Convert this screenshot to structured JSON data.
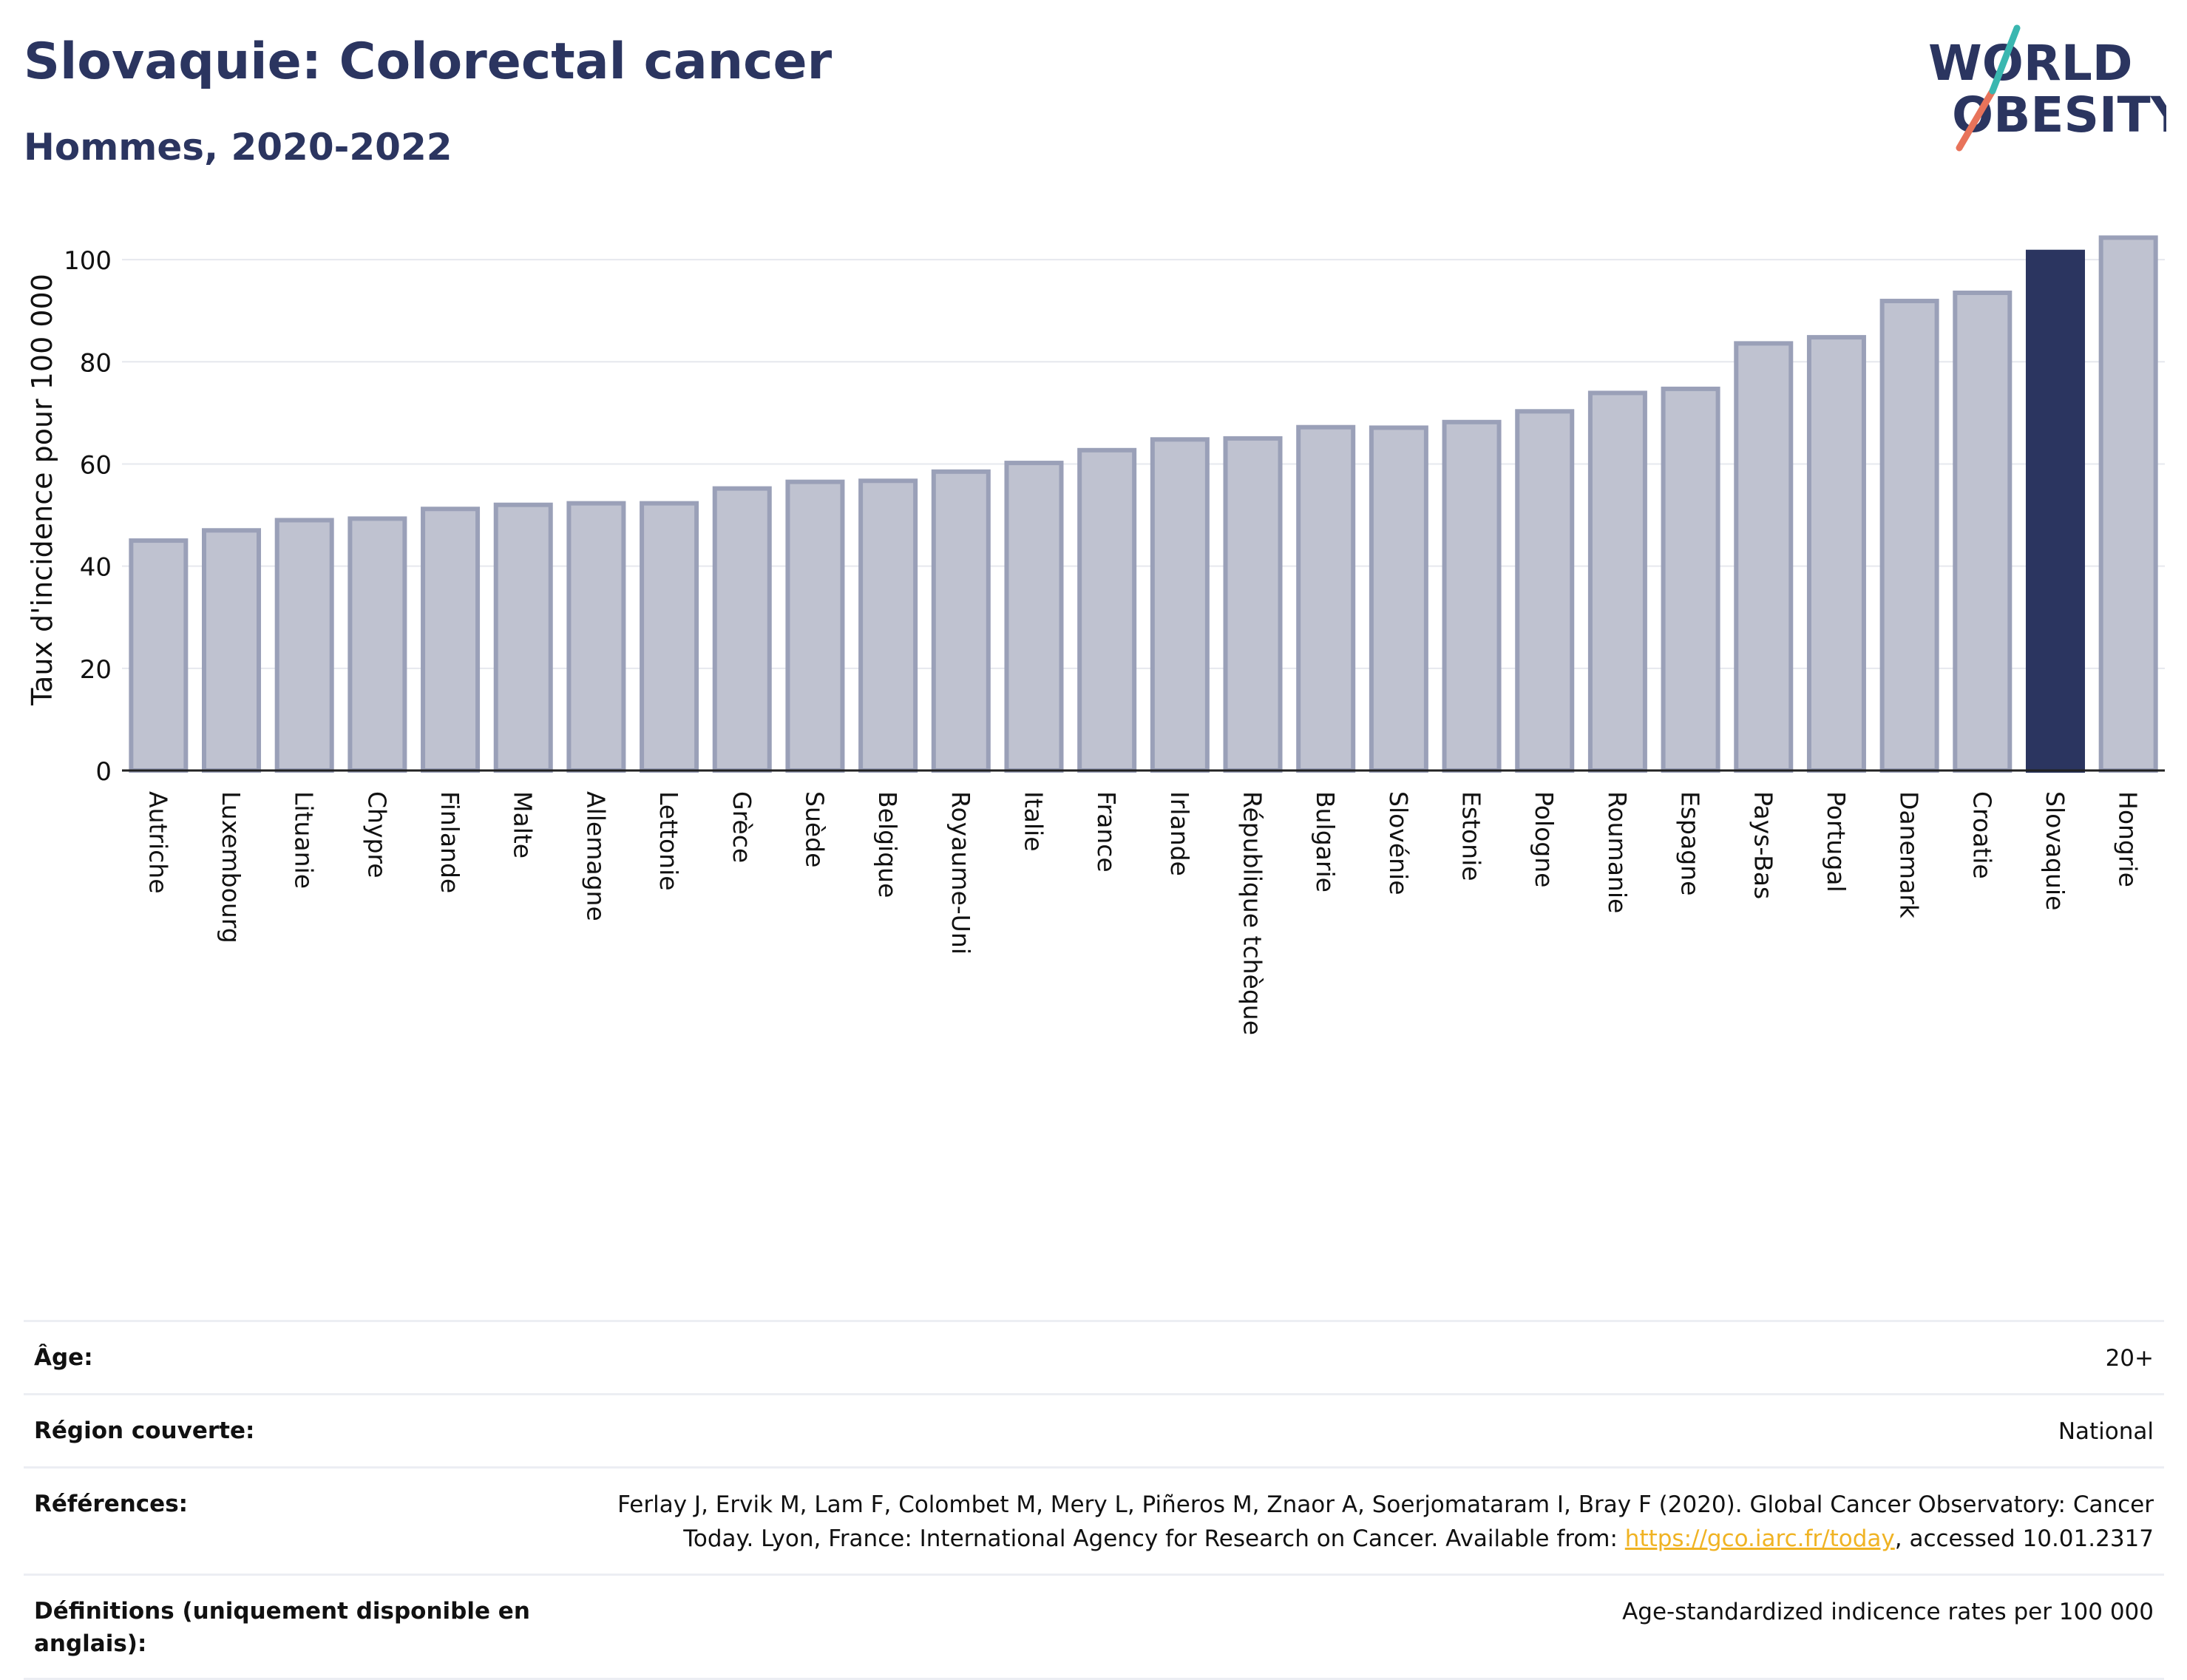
{
  "header": {
    "title": "Slovaquie: Colorectal cancer",
    "subtitle": "Hommes, 2020-2022",
    "logo_text_line1": "WORLD",
    "logo_text_line2": "OBESITY"
  },
  "chart_data": {
    "type": "bar",
    "ylabel": "Taux d'incidence pour 100 000",
    "ylim": [
      0,
      110
    ],
    "yticks": [
      0,
      20,
      40,
      60,
      80,
      100
    ],
    "grid": true,
    "highlight": "Slovaquie",
    "colors": {
      "bar": "#bfc2d0",
      "bar_edge": "#9aa0b8",
      "highlight": "#2b3560"
    },
    "categories": [
      "Autriche",
      "Luxembourg",
      "Lituanie",
      "Chypre",
      "Finlande",
      "Malte",
      "Allemagne",
      "Lettonie",
      "Grèce",
      "Suède",
      "Belgique",
      "Royaume-Uni",
      "Italie",
      "France",
      "Irlande",
      "République tchèque",
      "Bulgarie",
      "Slovénie",
      "Estonie",
      "Pologne",
      "Roumanie",
      "Espagne",
      "Pays-Bas",
      "Portugal",
      "Danemark",
      "Croatie",
      "Slovaquie",
      "Hongrie"
    ],
    "values": [
      45.0,
      47.0,
      49.0,
      49.3,
      51.2,
      52.0,
      52.3,
      52.3,
      55.2,
      56.5,
      56.7,
      58.5,
      60.2,
      62.7,
      64.8,
      65.0,
      67.2,
      67.1,
      68.2,
      70.3,
      73.9,
      74.7,
      83.6,
      84.8,
      91.9,
      93.5,
      101.5,
      104.3
    ]
  },
  "meta": {
    "rows": [
      {
        "label": "Âge:",
        "value": "20+"
      },
      {
        "label": "Région couverte:",
        "value": "National"
      },
      {
        "label": "Références:",
        "value_pre": "Ferlay J, Ervik M, Lam F, Colombet M, Mery L, Piñeros M, Znaor A, Soerjomataram I, Bray F (2020). Global Cancer Observatory: Cancer Today. Lyon, France: International Agency for Research on Cancer. Available from: ",
        "link": "https://gco.iarc.fr/today",
        "value_post": ", accessed 10.01.2317"
      },
      {
        "label": "Définitions (uniquement disponible en anglais):",
        "value": "Age-standardized indicence rates per 100 000"
      }
    ]
  }
}
